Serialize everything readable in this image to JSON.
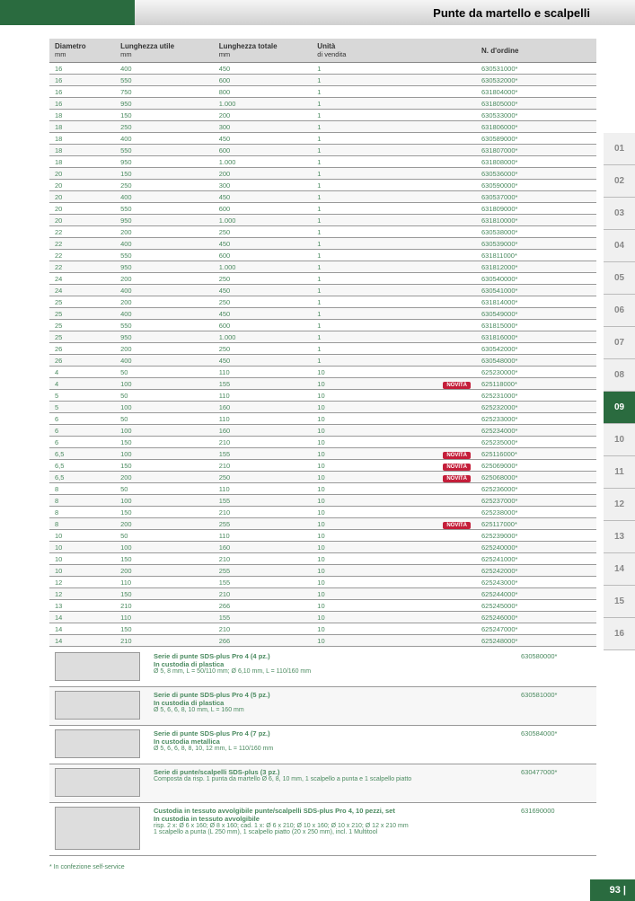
{
  "header": {
    "title": "Punte da martello e scalpelli"
  },
  "columns": {
    "c1": "Diametro",
    "c1_sub": "mm",
    "c2": "Lunghezza utile",
    "c2_sub": "mm",
    "c3": "Lunghezza totale",
    "c3_sub": "mm",
    "c4": "Unità",
    "c4_sub": "di vendita",
    "c5": "N. d'ordine"
  },
  "rows": [
    {
      "d": "16",
      "lu": "400",
      "lt": "450",
      "u": "1",
      "n": "630531000*",
      "b": ""
    },
    {
      "d": "16",
      "lu": "550",
      "lt": "600",
      "u": "1",
      "n": "630532000*",
      "b": ""
    },
    {
      "d": "16",
      "lu": "750",
      "lt": "800",
      "u": "1",
      "n": "631804000*",
      "b": ""
    },
    {
      "d": "16",
      "lu": "950",
      "lt": "1.000",
      "u": "1",
      "n": "631805000*",
      "b": ""
    },
    {
      "d": "18",
      "lu": "150",
      "lt": "200",
      "u": "1",
      "n": "630533000*",
      "b": ""
    },
    {
      "d": "18",
      "lu": "250",
      "lt": "300",
      "u": "1",
      "n": "631806000*",
      "b": ""
    },
    {
      "d": "18",
      "lu": "400",
      "lt": "450",
      "u": "1",
      "n": "630589000*",
      "b": ""
    },
    {
      "d": "18",
      "lu": "550",
      "lt": "600",
      "u": "1",
      "n": "631807000*",
      "b": ""
    },
    {
      "d": "18",
      "lu": "950",
      "lt": "1.000",
      "u": "1",
      "n": "631808000*",
      "b": ""
    },
    {
      "d": "20",
      "lu": "150",
      "lt": "200",
      "u": "1",
      "n": "630536000*",
      "b": ""
    },
    {
      "d": "20",
      "lu": "250",
      "lt": "300",
      "u": "1",
      "n": "630590000*",
      "b": ""
    },
    {
      "d": "20",
      "lu": "400",
      "lt": "450",
      "u": "1",
      "n": "630537000*",
      "b": ""
    },
    {
      "d": "20",
      "lu": "550",
      "lt": "600",
      "u": "1",
      "n": "631809000*",
      "b": ""
    },
    {
      "d": "20",
      "lu": "950",
      "lt": "1.000",
      "u": "1",
      "n": "631810000*",
      "b": ""
    },
    {
      "d": "22",
      "lu": "200",
      "lt": "250",
      "u": "1",
      "n": "630538000*",
      "b": ""
    },
    {
      "d": "22",
      "lu": "400",
      "lt": "450",
      "u": "1",
      "n": "630539000*",
      "b": ""
    },
    {
      "d": "22",
      "lu": "550",
      "lt": "600",
      "u": "1",
      "n": "631811000*",
      "b": ""
    },
    {
      "d": "22",
      "lu": "950",
      "lt": "1.000",
      "u": "1",
      "n": "631812000*",
      "b": ""
    },
    {
      "d": "24",
      "lu": "200",
      "lt": "250",
      "u": "1",
      "n": "630540000*",
      "b": ""
    },
    {
      "d": "24",
      "lu": "400",
      "lt": "450",
      "u": "1",
      "n": "630541000*",
      "b": ""
    },
    {
      "d": "25",
      "lu": "200",
      "lt": "250",
      "u": "1",
      "n": "631814000*",
      "b": ""
    },
    {
      "d": "25",
      "lu": "400",
      "lt": "450",
      "u": "1",
      "n": "630549000*",
      "b": ""
    },
    {
      "d": "25",
      "lu": "550",
      "lt": "600",
      "u": "1",
      "n": "631815000*",
      "b": ""
    },
    {
      "d": "25",
      "lu": "950",
      "lt": "1.000",
      "u": "1",
      "n": "631816000*",
      "b": ""
    },
    {
      "d": "26",
      "lu": "200",
      "lt": "250",
      "u": "1",
      "n": "630542000*",
      "b": ""
    },
    {
      "d": "26",
      "lu": "400",
      "lt": "450",
      "u": "1",
      "n": "630548000*",
      "b": ""
    },
    {
      "d": "4",
      "lu": "50",
      "lt": "110",
      "u": "10",
      "n": "625230000*",
      "b": ""
    },
    {
      "d": "4",
      "lu": "100",
      "lt": "155",
      "u": "10",
      "n": "625118000*",
      "b": "NOVITÀ"
    },
    {
      "d": "5",
      "lu": "50",
      "lt": "110",
      "u": "10",
      "n": "625231000*",
      "b": ""
    },
    {
      "d": "5",
      "lu": "100",
      "lt": "160",
      "u": "10",
      "n": "625232000*",
      "b": ""
    },
    {
      "d": "6",
      "lu": "50",
      "lt": "110",
      "u": "10",
      "n": "625233000*",
      "b": ""
    },
    {
      "d": "6",
      "lu": "100",
      "lt": "160",
      "u": "10",
      "n": "625234000*",
      "b": ""
    },
    {
      "d": "6",
      "lu": "150",
      "lt": "210",
      "u": "10",
      "n": "625235000*",
      "b": ""
    },
    {
      "d": "6,5",
      "lu": "100",
      "lt": "155",
      "u": "10",
      "n": "625116000*",
      "b": "NOVITÀ"
    },
    {
      "d": "6,5",
      "lu": "150",
      "lt": "210",
      "u": "10",
      "n": "625069000*",
      "b": "NOVITÀ"
    },
    {
      "d": "6,5",
      "lu": "200",
      "lt": "250",
      "u": "10",
      "n": "625068000*",
      "b": "NOVITÀ"
    },
    {
      "d": "8",
      "lu": "50",
      "lt": "110",
      "u": "10",
      "n": "625236000*",
      "b": ""
    },
    {
      "d": "8",
      "lu": "100",
      "lt": "155",
      "u": "10",
      "n": "625237000*",
      "b": ""
    },
    {
      "d": "8",
      "lu": "150",
      "lt": "210",
      "u": "10",
      "n": "625238000*",
      "b": ""
    },
    {
      "d": "8",
      "lu": "200",
      "lt": "255",
      "u": "10",
      "n": "625117000*",
      "b": "NOVITÀ"
    },
    {
      "d": "10",
      "lu": "50",
      "lt": "110",
      "u": "10",
      "n": "625239000*",
      "b": ""
    },
    {
      "d": "10",
      "lu": "100",
      "lt": "160",
      "u": "10",
      "n": "625240000*",
      "b": ""
    },
    {
      "d": "10",
      "lu": "150",
      "lt": "210",
      "u": "10",
      "n": "625241000*",
      "b": ""
    },
    {
      "d": "10",
      "lu": "200",
      "lt": "255",
      "u": "10",
      "n": "625242000*",
      "b": ""
    },
    {
      "d": "12",
      "lu": "110",
      "lt": "155",
      "u": "10",
      "n": "625243000*",
      "b": ""
    },
    {
      "d": "12",
      "lu": "150",
      "lt": "210",
      "u": "10",
      "n": "625244000*",
      "b": ""
    },
    {
      "d": "13",
      "lu": "210",
      "lt": "266",
      "u": "10",
      "n": "625245000*",
      "b": ""
    },
    {
      "d": "14",
      "lu": "110",
      "lt": "155",
      "u": "10",
      "n": "625246000*",
      "b": ""
    },
    {
      "d": "14",
      "lu": "150",
      "lt": "210",
      "u": "10",
      "n": "625247000*",
      "b": ""
    },
    {
      "d": "14",
      "lu": "210",
      "lt": "266",
      "u": "10",
      "n": "625248000*",
      "b": ""
    }
  ],
  "kits": [
    {
      "title": "Serie di punte SDS-plus Pro 4 (4 pz.)",
      "sub": "In custodia di plastica",
      "desc": "Ø 5, 8 mm, L = 50/110 mm; Ø 6,10 mm, L = 110/160 mm",
      "n": "630580000*",
      "h": "32"
    },
    {
      "title": "Serie di punte SDS-plus Pro 4 (5 pz.)",
      "sub": "In custodia di plastica",
      "desc": "Ø 5, 6, 6, 8, 10 mm, L = 160 mm",
      "n": "630581000*",
      "h": "32"
    },
    {
      "title": "Serie di punte SDS-plus Pro 4 (7 pz.)",
      "sub": "In custodia metallica",
      "desc": "Ø 5, 6, 6, 8, 8, 10, 12 mm, L = 110/160 mm",
      "n": "630584000*",
      "h": "32"
    },
    {
      "title": "Serie di punte/scalpelli SDS-plus (3 pz.)",
      "sub": "",
      "desc": "Composta da risp. 1 punta da martello Ø 6, 8, 10 mm, 1 scalpello a punta e 1 scalpello piatto",
      "n": "630477000*",
      "h": "28"
    },
    {
      "title": "Custodia in tessuto avvolgibile punte/scalpelli SDS-plus Pro 4, 10 pezzi, set",
      "sub": "In custodia in tessuto avvolgibile",
      "desc": "risp. 2 x: Ø 6 x 160; Ø 8 x 160; cad. 1 x: Ø 6 x 210; Ø 10 x 160; Ø 10 x 210; Ø 12 x 210 mm\n1 scalpello a punta (L 250 mm), 1 scalpello piatto (20 x 250 mm), incl. 1 Multitool",
      "n": "631690000",
      "h": "48"
    }
  ],
  "footnote": "* In confezione self-service",
  "sidebar": [
    "01",
    "02",
    "03",
    "04",
    "05",
    "06",
    "07",
    "08",
    "09",
    "10",
    "11",
    "12",
    "13",
    "14",
    "15",
    "16"
  ],
  "sidebar_active": "09",
  "page": "93 |"
}
